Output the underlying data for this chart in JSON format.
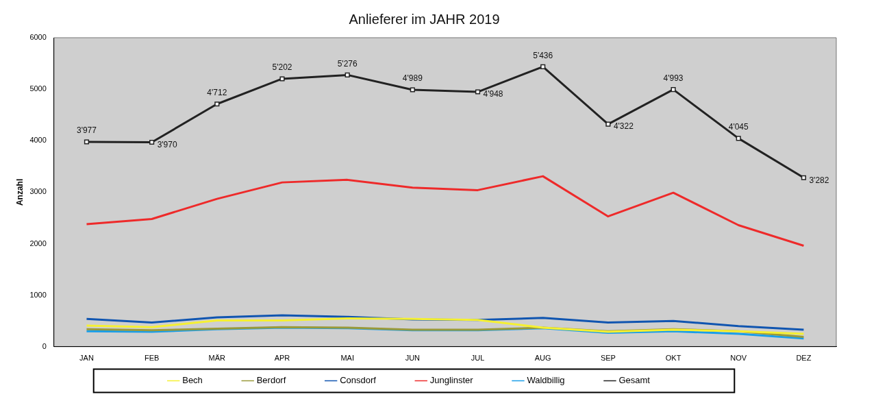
{
  "chart_data": {
    "type": "line",
    "title": "Anlieferer im JAHR 2019",
    "ylabel": "Anzahl",
    "categories": [
      "JAN",
      "FEB",
      "MÄR",
      "APR",
      "MAI",
      "JUN",
      "JUL",
      "AUG",
      "SEP",
      "OKT",
      "NOV",
      "DEZ"
    ],
    "ylim": [
      0,
      6000
    ],
    "yticks": [
      0,
      1000,
      2000,
      3000,
      4000,
      5000,
      6000
    ],
    "grid": false,
    "legend": "bottom",
    "line_style": "solid",
    "series": [
      {
        "name": "Bech",
        "color": "#f5f032",
        "values": [
          410,
          380,
          510,
          510,
          550,
          540,
          520,
          370,
          290,
          330,
          300,
          250
        ]
      },
      {
        "name": "Berdorf",
        "color": "#9a9a3a",
        "values": [
          340,
          320,
          350,
          380,
          370,
          330,
          330,
          370,
          300,
          340,
          300,
          190
        ]
      },
      {
        "name": "Consdorf",
        "color": "#1055b0",
        "values": [
          540,
          470,
          570,
          610,
          580,
          530,
          520,
          560,
          470,
          500,
          400,
          330
        ]
      },
      {
        "name": "Junglinster",
        "color": "#ee2a2a",
        "values": [
          2380,
          2480,
          2870,
          3190,
          3240,
          3090,
          3040,
          3310,
          2530,
          2990,
          2360,
          1960
        ]
      },
      {
        "name": "Waldbillig",
        "color": "#1a9ee8",
        "values": [
          300,
          290,
          340,
          370,
          360,
          320,
          320,
          360,
          270,
          300,
          250,
          160
        ]
      },
      {
        "name": "Gesamt",
        "color": "#222222",
        "marker": "square",
        "values": [
          3977,
          3970,
          4712,
          5202,
          5276,
          4989,
          4948,
          5436,
          4322,
          4993,
          4045,
          3282
        ],
        "value_labels": [
          "3'977",
          "3'970",
          "4'712",
          "5'202",
          "5'276",
          "4'989",
          "4'948",
          "5'436",
          "4'322",
          "4'993",
          "4'045",
          "3'282"
        ]
      }
    ]
  }
}
